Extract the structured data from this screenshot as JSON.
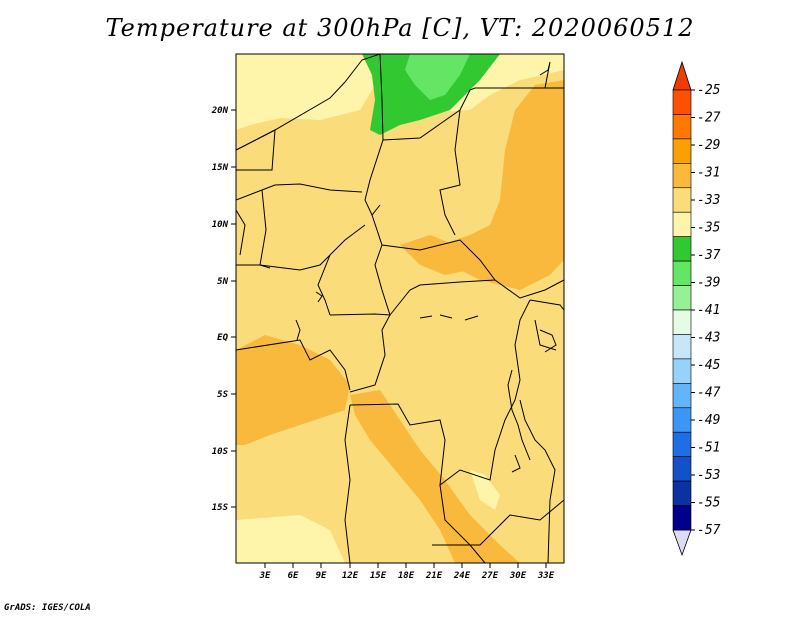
{
  "title": "Temperature at 300hPa [C], VT: 2020060512",
  "credit": "GrADS: IGES/COLA",
  "map": {
    "lat_labels": [
      "20N",
      "15N",
      "10N",
      "5N",
      "EQ",
      "5S",
      "10S",
      "15S"
    ],
    "lon_labels": [
      "3E",
      "6E",
      "9E",
      "12E",
      "15E",
      "18E",
      "21E",
      "24E",
      "27E",
      "30E",
      "33E"
    ]
  },
  "colorbar": {
    "labels": [
      "-25",
      "-27",
      "-29",
      "-31",
      "-33",
      "-35",
      "-37",
      "-39",
      "-41",
      "-43",
      "-45",
      "-47",
      "-49",
      "-51",
      "-53",
      "-55",
      "-57"
    ],
    "colors": [
      "#ff5000",
      "#ff7800",
      "#fba000",
      "#f9b93d",
      "#fadc7a",
      "#fff5aa",
      "#32c832",
      "#64e664",
      "#96f096",
      "#e6fae6",
      "#c8e6fa",
      "#96d2fa",
      "#64b4fa",
      "#3c96f5",
      "#1e6ee6",
      "#1450c8",
      "#0a32a0",
      "#00008c"
    ],
    "top_arrow_color": "#f03c00",
    "bottom_arrow_color": "#dcdcf5"
  },
  "palette": {
    "yellow_base": "#fadc7a",
    "orange": "#f9b93d",
    "pale": "#fff5aa",
    "green_dark": "#32c832",
    "green_light": "#64e664"
  }
}
